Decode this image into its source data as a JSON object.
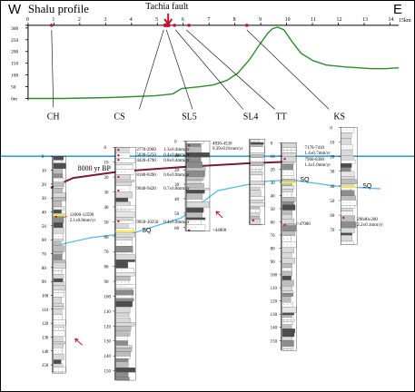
{
  "header": {
    "left_dir": "W",
    "title": "Shalu profile",
    "fault_label": "Tachia fault",
    "right_dir": "E",
    "km_unit": "15km",
    "km_ticks": [
      "0",
      "1",
      "2",
      "3",
      "4",
      "5",
      "6",
      "7",
      "8",
      "9",
      "10",
      "11",
      "12",
      "13",
      "14"
    ],
    "elev_ticks": [
      "300",
      "250",
      "200",
      "150",
      "100",
      "50",
      "0m"
    ]
  },
  "sites": [
    "CH",
    "CS",
    "SL5",
    "SL4",
    "TT",
    "KS"
  ],
  "depth_ticks_left": [
    "0",
    "10",
    "20",
    "30",
    "40",
    "50",
    "60",
    "70",
    "80",
    "90",
    "100",
    "110",
    "120",
    "130",
    "140",
    "150"
  ],
  "depth_ticks_cs": [
    "0",
    "10",
    "20",
    "30",
    "40",
    "50",
    "60",
    "70",
    "80",
    "90",
    "100",
    "110",
    "120",
    "130",
    "140",
    "150"
  ],
  "depth_ticks_sl5": [
    "0",
    "10",
    "20",
    "30",
    "40",
    "50",
    "60"
  ],
  "depth_ticks_tt": [
    "0",
    "10",
    "20",
    "30",
    "40",
    "50",
    "60",
    "70",
    "80",
    "90",
    "100",
    "110",
    "120",
    "130",
    "140",
    "150"
  ],
  "depth_ticks_ks": [
    "0",
    "10",
    "20",
    "30",
    "40",
    "50",
    "60",
    "70"
  ],
  "bp_label": "8000 yr BP",
  "sq_label": "SQ",
  "ch_age": "12000-12590",
  "ch_rate": "2.1±0.8mm/yr",
  "cs_dates": [
    {
      "age": "2770-2960",
      "rate": "1.3±0.4mm/yr"
    },
    {
      "age": "5030-5250",
      "rate": "0.4±0.4mm/yr"
    },
    {
      "age": "4420-4790",
      "rate": "0.8±0.4mm/yr"
    },
    {
      "age": "8180-8390",
      "rate": "0.6±0.9mm/yr"
    },
    {
      "age": "9040-9420",
      "rate": "0.7±0.8mm/yr"
    },
    {
      "age": "9950-10250",
      "rate": "0.4±0.9mm/yr"
    }
  ],
  "sl5_age": "4830-4530",
  "sl5_rate": "0.39±0.01mm/yr",
  "sl5_bottom_age": ">44800",
  "tt_dates": [
    {
      "age": "7170-7410",
      "rate": "1.4±0.7mm/yr"
    },
    {
      "age": "7960-8360",
      "rate": "1.4±1.0mm/yr"
    }
  ],
  "tt_bottom_age": ">47000",
  "ks_age": "29640±200",
  "ks_rate": "2.2±0.1mm/yr",
  "colors": {
    "sea_level": "#3a9fe0",
    "sq_line": "#5bc0e8",
    "bp_line": "#7a1a3a",
    "topography": "#2e8b2e",
    "date_red": "#c8102e"
  },
  "icons": [
    "fault-arrow-icon",
    "sample-dot-icon",
    "event-arrow-icon"
  ]
}
